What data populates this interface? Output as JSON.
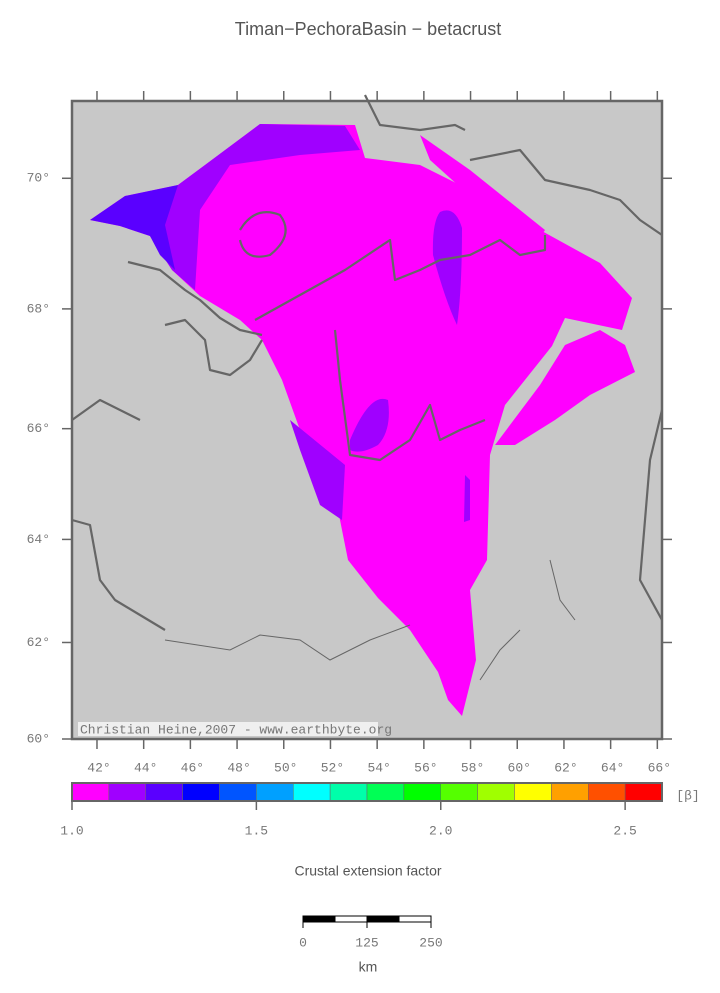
{
  "title": "Timan−PechoraBasin − betacrust",
  "credit": "Christian Heine,2007 - www.earthbyte.org",
  "map": {
    "lonlim": [
      40.93,
      66.2
    ],
    "latlim": [
      60,
      71.1
    ],
    "lonticks": [
      {
        "value": 42,
        "label": "42°"
      },
      {
        "value": 44,
        "label": "44°"
      },
      {
        "value": 46,
        "label": "46°"
      },
      {
        "value": 48,
        "label": "48°"
      },
      {
        "value": 50,
        "label": "50°"
      },
      {
        "value": 52,
        "label": "52°"
      },
      {
        "value": 54,
        "label": "54°"
      },
      {
        "value": 56,
        "label": "56°"
      },
      {
        "value": 58,
        "label": "58°"
      },
      {
        "value": 60,
        "label": "60°"
      },
      {
        "value": 62,
        "label": "62°"
      },
      {
        "value": 64,
        "label": "64°"
      },
      {
        "value": 66,
        "label": "66°"
      }
    ],
    "latticks": [
      {
        "value": 60,
        "label": "60°"
      },
      {
        "value": 62,
        "label": "62°"
      },
      {
        "value": 64,
        "label": "64°"
      },
      {
        "value": 66,
        "label": "66°"
      },
      {
        "value": 68,
        "label": "68°"
      },
      {
        "value": 70,
        "label": "70°"
      }
    ]
  },
  "colorbar": {
    "label": "Crustal extension factor",
    "unit": "[β]",
    "lim": [
      1.0,
      2.6
    ],
    "bins": [
      1.0,
      1.1,
      1.2,
      1.3,
      1.4,
      1.5,
      1.6,
      1.7,
      1.8,
      1.9,
      2.0,
      2.1,
      2.2,
      2.3,
      2.4,
      2.5,
      2.6
    ],
    "colors": [
      "#ff00ff",
      "#a000ff",
      "#5a00ff",
      "#0000ff",
      "#0055ff",
      "#00a0ff",
      "#00ffff",
      "#00ffaa",
      "#00ff55",
      "#00ff00",
      "#55ff00",
      "#a0ff00",
      "#ffff00",
      "#ffa000",
      "#ff5000",
      "#ff0000"
    ],
    "ticks": [
      {
        "value": 1.0,
        "label": "1.0"
      },
      {
        "value": 1.5,
        "label": "1.5"
      },
      {
        "value": 2.0,
        "label": "2.0"
      },
      {
        "value": 2.5,
        "label": "2.5"
      }
    ]
  },
  "scale_bar": {
    "unit": "km",
    "lim": [
      0,
      250
    ],
    "ticks": [
      0,
      125,
      250
    ],
    "segments": 4
  }
}
